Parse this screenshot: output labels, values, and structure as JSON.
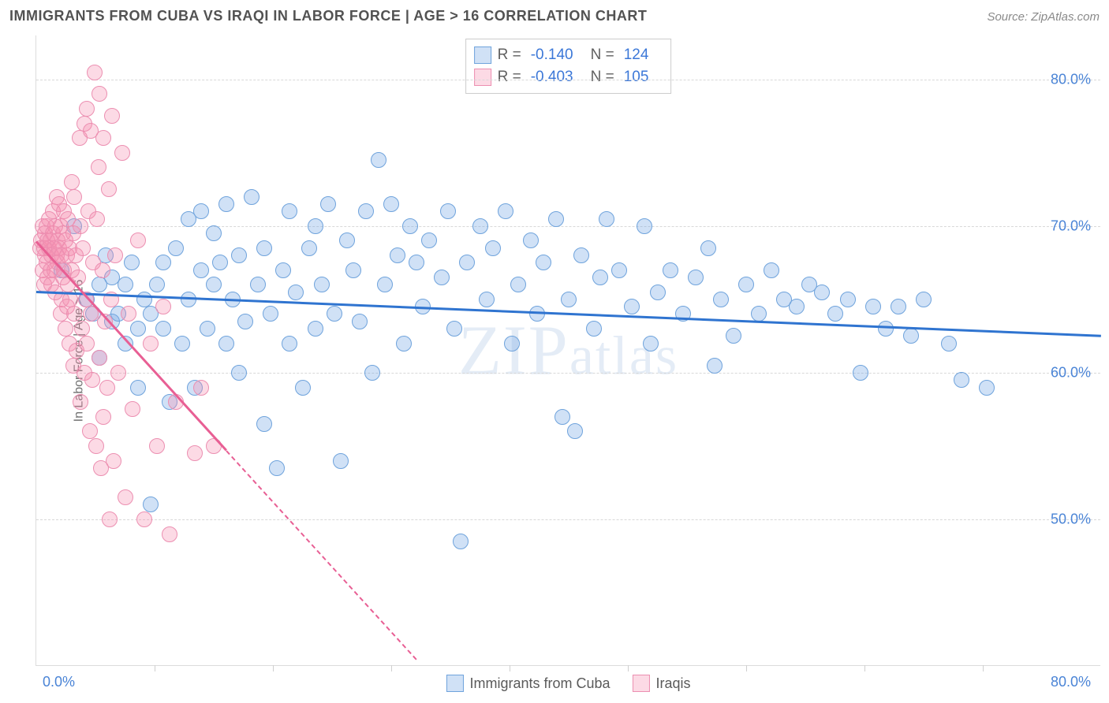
{
  "title": "IMMIGRANTS FROM CUBA VS IRAQI IN LABOR FORCE | AGE > 16 CORRELATION CHART",
  "source": "Source: ZipAtlas.com",
  "watermark_a": "ZIP",
  "watermark_b": "atlas",
  "y_axis_title": "In Labor Force | Age > 16",
  "chart": {
    "type": "scatter",
    "background_color": "#ffffff",
    "grid_color": "#d8d8d8",
    "xlim": [
      0,
      84
    ],
    "ylim": [
      40,
      83
    ],
    "x_ticks_count": 9,
    "x_label_min": "0.0%",
    "x_label_max": "80.0%",
    "y_grid": [
      50,
      60,
      70,
      80
    ],
    "y_labels": {
      "50": "50.0%",
      "60": "60.0%",
      "70": "70.0%",
      "80": "80.0%"
    },
    "marker_radius": 10,
    "marker_border_width": 1.5,
    "trend_width_solid": 3,
    "trend_width_dash": 2,
    "axis_label_color": "#4a84d6",
    "axis_tick_color": "#cfcfcf"
  },
  "series": [
    {
      "name": "Immigrants from Cuba",
      "fill": "rgba(120,170,230,0.35)",
      "stroke": "#6fa3dc",
      "trend_color": "#2f74d0",
      "R_label": "R =",
      "R": "-0.140",
      "N_label": "N =",
      "N": "124",
      "trend": {
        "x1": 0,
        "y1": 65.6,
        "x2": 84,
        "y2": 62.6,
        "dash_after_x": 999
      },
      "points": [
        [
          2,
          67
        ],
        [
          3,
          70
        ],
        [
          4,
          65
        ],
        [
          4.5,
          64
        ],
        [
          5,
          66
        ],
        [
          5,
          61
        ],
        [
          5.5,
          68
        ],
        [
          6,
          63.5
        ],
        [
          6,
          66.5
        ],
        [
          6.5,
          64
        ],
        [
          7,
          66
        ],
        [
          7,
          62
        ],
        [
          7.5,
          67.5
        ],
        [
          8,
          63
        ],
        [
          8,
          59
        ],
        [
          8.5,
          65
        ],
        [
          9,
          51
        ],
        [
          9,
          64
        ],
        [
          9.5,
          66
        ],
        [
          10,
          67.5
        ],
        [
          10,
          63
        ],
        [
          10.5,
          58
        ],
        [
          11,
          68.5
        ],
        [
          11.5,
          62
        ],
        [
          12,
          70.5
        ],
        [
          12,
          65
        ],
        [
          12.5,
          59
        ],
        [
          13,
          67
        ],
        [
          13,
          71
        ],
        [
          13.5,
          63
        ],
        [
          14,
          66
        ],
        [
          14,
          69.5
        ],
        [
          14.5,
          67.5
        ],
        [
          15,
          62
        ],
        [
          15,
          71.5
        ],
        [
          15.5,
          65
        ],
        [
          16,
          68
        ],
        [
          16,
          60
        ],
        [
          16.5,
          63.5
        ],
        [
          17,
          72
        ],
        [
          17.5,
          66
        ],
        [
          18,
          68.5
        ],
        [
          18,
          56.5
        ],
        [
          18.5,
          64
        ],
        [
          19,
          53.5
        ],
        [
          19.5,
          67
        ],
        [
          20,
          71
        ],
        [
          20,
          62
        ],
        [
          20.5,
          65.5
        ],
        [
          21,
          59
        ],
        [
          21.5,
          68.5
        ],
        [
          22,
          63
        ],
        [
          22,
          70
        ],
        [
          22.5,
          66
        ],
        [
          23,
          71.5
        ],
        [
          23.5,
          64
        ],
        [
          24,
          54
        ],
        [
          24.5,
          69
        ],
        [
          25,
          67
        ],
        [
          25.5,
          63.5
        ],
        [
          26,
          71
        ],
        [
          26.5,
          60
        ],
        [
          27,
          74.5
        ],
        [
          27.5,
          66
        ],
        [
          28,
          71.5
        ],
        [
          28.5,
          68
        ],
        [
          29,
          62
        ],
        [
          29.5,
          70
        ],
        [
          30,
          67.5
        ],
        [
          30.5,
          64.5
        ],
        [
          31,
          69
        ],
        [
          32,
          66.5
        ],
        [
          32.5,
          71
        ],
        [
          33,
          63
        ],
        [
          33.5,
          48.5
        ],
        [
          34,
          67.5
        ],
        [
          35,
          70
        ],
        [
          35.5,
          65
        ],
        [
          36,
          68.5
        ],
        [
          37,
          71
        ],
        [
          37.5,
          62
        ],
        [
          38,
          66
        ],
        [
          39,
          69
        ],
        [
          39.5,
          64
        ],
        [
          40,
          67.5
        ],
        [
          41,
          70.5
        ],
        [
          41.5,
          57
        ],
        [
          42,
          65
        ],
        [
          42.5,
          56
        ],
        [
          43,
          68
        ],
        [
          44,
          63
        ],
        [
          44.5,
          66.5
        ],
        [
          45,
          70.5
        ],
        [
          46,
          67
        ],
        [
          47,
          64.5
        ],
        [
          48,
          70
        ],
        [
          48.5,
          62
        ],
        [
          49,
          65.5
        ],
        [
          50,
          67
        ],
        [
          51,
          64
        ],
        [
          52,
          66.5
        ],
        [
          53,
          68.5
        ],
        [
          53.5,
          60.5
        ],
        [
          54,
          65
        ],
        [
          55,
          62.5
        ],
        [
          56,
          66
        ],
        [
          57,
          64
        ],
        [
          58,
          67
        ],
        [
          59,
          65
        ],
        [
          60,
          64.5
        ],
        [
          61,
          66
        ],
        [
          62,
          65.5
        ],
        [
          63,
          64
        ],
        [
          64,
          65
        ],
        [
          65,
          60
        ],
        [
          66,
          64.5
        ],
        [
          67,
          63
        ],
        [
          68,
          64.5
        ],
        [
          69,
          62.5
        ],
        [
          70,
          65
        ],
        [
          72,
          62
        ],
        [
          73,
          59.5
        ],
        [
          75,
          59
        ]
      ]
    },
    {
      "name": "Iraqis",
      "fill": "rgba(245,140,175,0.32)",
      "stroke": "#ec8fb1",
      "trend_color": "#e85f94",
      "R_label": "R =",
      "R": "-0.403",
      "N_label": "N =",
      "N": "105",
      "trend": {
        "x1": 0,
        "y1": 69,
        "x2": 30,
        "y2": 40.5,
        "dash_after_x": 15
      },
      "points": [
        [
          0.3,
          68.5
        ],
        [
          0.4,
          69
        ],
        [
          0.5,
          67
        ],
        [
          0.5,
          70
        ],
        [
          0.6,
          68.5
        ],
        [
          0.6,
          66
        ],
        [
          0.7,
          69.5
        ],
        [
          0.7,
          68
        ],
        [
          0.8,
          70
        ],
        [
          0.8,
          67.5
        ],
        [
          0.9,
          69
        ],
        [
          0.9,
          66.5
        ],
        [
          1,
          68.5
        ],
        [
          1,
          70.5
        ],
        [
          1.1,
          67
        ],
        [
          1.1,
          69
        ],
        [
          1.2,
          68
        ],
        [
          1.2,
          66
        ],
        [
          1.3,
          71
        ],
        [
          1.3,
          69.5
        ],
        [
          1.4,
          68.5
        ],
        [
          1.4,
          67
        ],
        [
          1.5,
          70
        ],
        [
          1.5,
          65.5
        ],
        [
          1.6,
          68
        ],
        [
          1.6,
          72
        ],
        [
          1.7,
          69
        ],
        [
          1.7,
          67.5
        ],
        [
          1.8,
          71.5
        ],
        [
          1.8,
          68.5
        ],
        [
          1.9,
          64
        ],
        [
          1.9,
          70
        ],
        [
          2,
          68
        ],
        [
          2,
          65
        ],
        [
          2.1,
          69.5
        ],
        [
          2.1,
          66.5
        ],
        [
          2.2,
          67
        ],
        [
          2.2,
          71
        ],
        [
          2.3,
          63
        ],
        [
          2.3,
          69
        ],
        [
          2.4,
          68
        ],
        [
          2.4,
          64.5
        ],
        [
          2.5,
          70.5
        ],
        [
          2.5,
          66
        ],
        [
          2.6,
          62
        ],
        [
          2.6,
          68.5
        ],
        [
          2.7,
          65
        ],
        [
          2.8,
          73
        ],
        [
          2.8,
          67
        ],
        [
          2.9,
          60.5
        ],
        [
          2.9,
          69.5
        ],
        [
          3,
          64
        ],
        [
          3,
          72
        ],
        [
          3.1,
          68
        ],
        [
          3.2,
          61.5
        ],
        [
          3.3,
          66.5
        ],
        [
          3.4,
          76
        ],
        [
          3.5,
          70
        ],
        [
          3.5,
          58
        ],
        [
          3.6,
          63
        ],
        [
          3.7,
          68.5
        ],
        [
          3.8,
          77
        ],
        [
          3.8,
          60
        ],
        [
          3.9,
          65
        ],
        [
          4,
          78
        ],
        [
          4,
          62
        ],
        [
          4.1,
          71
        ],
        [
          4.2,
          56
        ],
        [
          4.3,
          76.5
        ],
        [
          4.3,
          64
        ],
        [
          4.4,
          59.5
        ],
        [
          4.5,
          67.5
        ],
        [
          4.6,
          80.5
        ],
        [
          4.7,
          55
        ],
        [
          4.8,
          70.5
        ],
        [
          4.9,
          74
        ],
        [
          5,
          61
        ],
        [
          5,
          79
        ],
        [
          5.1,
          53.5
        ],
        [
          5.2,
          67
        ],
        [
          5.3,
          76
        ],
        [
          5.3,
          57
        ],
        [
          5.4,
          63.5
        ],
        [
          5.6,
          59
        ],
        [
          5.7,
          72.5
        ],
        [
          5.8,
          50
        ],
        [
          5.9,
          65
        ],
        [
          6,
          77.5
        ],
        [
          6.1,
          54
        ],
        [
          6.2,
          68
        ],
        [
          6.5,
          60
        ],
        [
          6.8,
          75
        ],
        [
          7,
          51.5
        ],
        [
          7.3,
          64
        ],
        [
          7.6,
          57.5
        ],
        [
          8,
          69
        ],
        [
          8.5,
          50
        ],
        [
          9,
          62
        ],
        [
          9.5,
          55
        ],
        [
          10,
          64.5
        ],
        [
          10.5,
          49
        ],
        [
          11,
          58
        ],
        [
          12.5,
          54.5
        ],
        [
          13,
          59
        ],
        [
          14,
          55
        ]
      ]
    }
  ],
  "legend_bottom": [
    {
      "label": "Immigrants from Cuba"
    },
    {
      "label": "Iraqis"
    }
  ]
}
